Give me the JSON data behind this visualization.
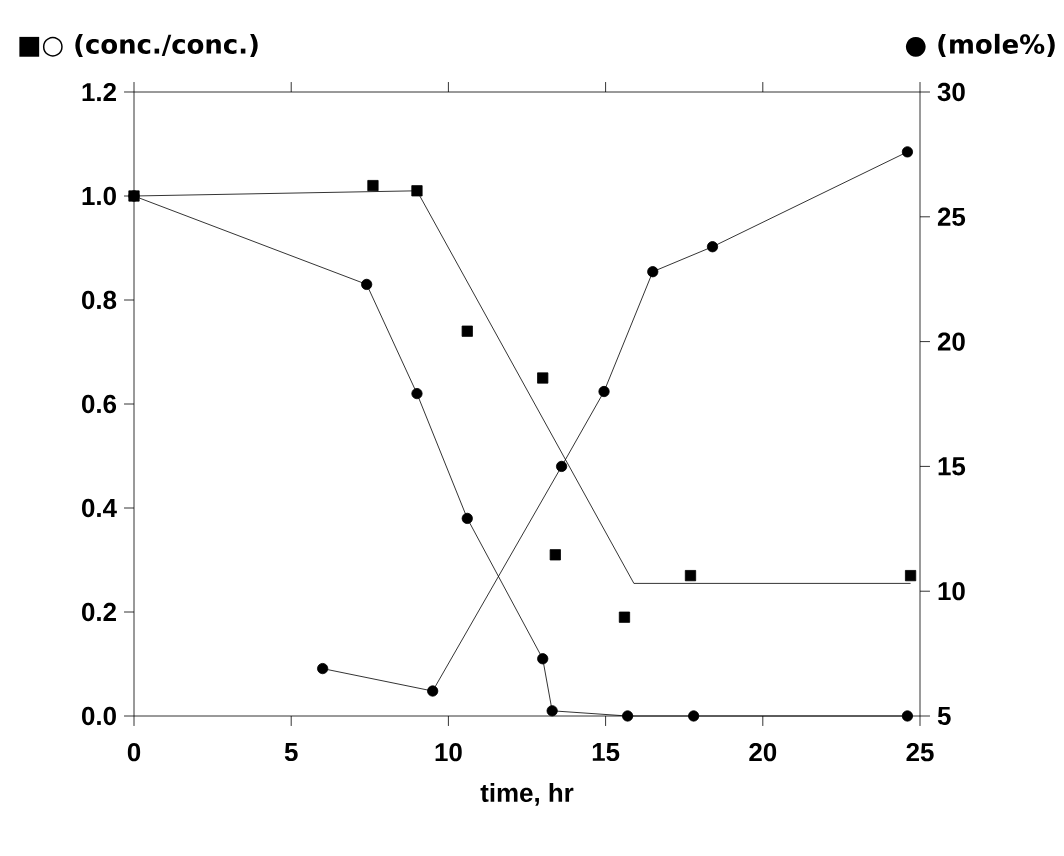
{
  "chart_data": {
    "type": "line",
    "xlabel": "time, hr",
    "ylabel": "■○ (conc./conc.)",
    "y2label": "● (mole%)",
    "xlim": [
      0,
      25
    ],
    "xticks": [
      0,
      5,
      10,
      15,
      20,
      25
    ],
    "ylim": [
      0,
      1.2
    ],
    "yticks": [
      {
        "value": 0,
        "label": "0.0"
      },
      {
        "value": 0.2,
        "label": "0.2"
      },
      {
        "value": 0.4,
        "label": "0.4"
      },
      {
        "value": 0.6,
        "label": "0.6"
      },
      {
        "value": 0.8,
        "label": "0.8"
      },
      {
        "value": 1.0,
        "label": "1.0"
      },
      {
        "value": 1.2,
        "label": "1.2"
      }
    ],
    "y2lim": [
      5,
      30
    ],
    "y2ticks": [
      5,
      10,
      15,
      20,
      25,
      30
    ],
    "grid": false,
    "series": [
      {
        "type": "scatter",
        "color": "#000000",
        "marker": "square",
        "x": [
          0,
          7.6,
          9.0,
          10.6,
          13.0,
          13.4,
          15.6,
          17.7,
          24.7
        ],
        "values": [
          1.0,
          1.02,
          1.01,
          0.74,
          0.65,
          0.31,
          0.19,
          0.27,
          0.27
        ]
      },
      {
        "type": "line",
        "color": "#000000",
        "marker": "none",
        "x": [
          0,
          9.0,
          15.9,
          24.7
        ],
        "values": [
          1.0,
          1.01,
          0.255,
          0.255
        ]
      },
      {
        "color": "#000000",
        "marker": "circle",
        "x": [
          0,
          7.4,
          9.0,
          10.6,
          13.0,
          13.3,
          15.7,
          17.8,
          24.6
        ],
        "values": [
          1.0,
          0.83,
          0.62,
          0.38,
          0.11,
          0.01,
          0,
          0,
          0
        ]
      },
      {
        "color": "#000000",
        "marker": "circle",
        "axis": "y2",
        "x": [
          6.0,
          9.5,
          13.6,
          14.95,
          16.5,
          18.4,
          24.6
        ],
        "values": [
          6.9,
          6.0,
          15.0,
          18.0,
          22.8,
          23.8,
          27.6
        ]
      }
    ]
  }
}
